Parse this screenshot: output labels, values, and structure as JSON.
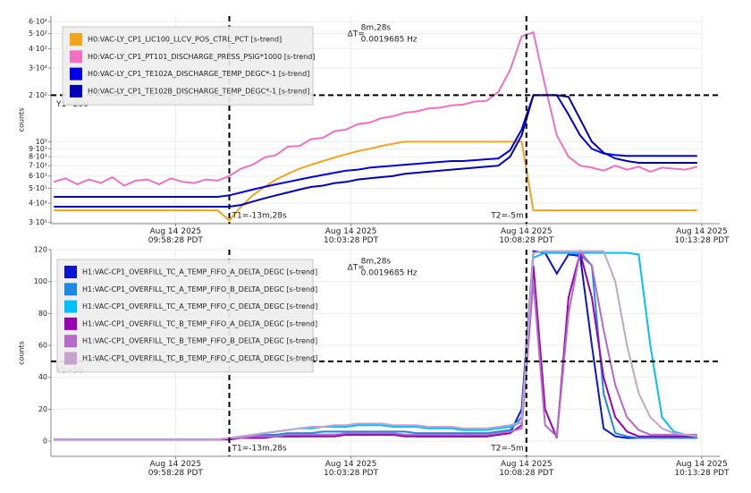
{
  "chart_data": [
    {
      "type": "line",
      "ylabel": "counts",
      "log_y": true,
      "grid": true,
      "legend": "upper left",
      "xlim": [
        "2025-08-14T09:54:55",
        "2025-08-14T10:13:28"
      ],
      "ylim": [
        29.5,
        650
      ],
      "yticks": [
        {
          "value": 30,
          "label": "3·10¹"
        },
        {
          "value": 40,
          "label": "4·10¹"
        },
        {
          "value": 50,
          "label": "5·10¹"
        },
        {
          "value": 60,
          "label": "6·10¹"
        },
        {
          "value": 70,
          "label": "7·10¹"
        },
        {
          "value": 80,
          "label": "8·10¹"
        },
        {
          "value": 90,
          "label": "9·10¹"
        },
        {
          "value": 100,
          "label": "10²"
        },
        {
          "value": 200,
          "label": "2·10²"
        },
        {
          "value": 300,
          "label": "3·10²"
        },
        {
          "value": 400,
          "label": "4·10²"
        },
        {
          "value": 500,
          "label": "5·10²"
        },
        {
          "value": 600,
          "label": "6·10²"
        }
      ],
      "xticks": [
        {
          "value": "2025-08-14T09:58:28",
          "label": "Aug 14 2025\n09:58:28 PDT"
        },
        {
          "value": "2025-08-14T10:03:28",
          "label": "Aug 14 2025\n10:03:28 PDT"
        },
        {
          "value": "2025-08-14T10:08:28",
          "label": "Aug 14 2025\n10:08:28 PDT"
        },
        {
          "value": "2025-08-14T10:13:28",
          "label": "Aug 14 2025\n10:13:28 PDT"
        }
      ],
      "cursors": {
        "t1": {
          "x": "2025-08-14T10:00:00",
          "label": "T1=-13m,28s"
        },
        "t2": {
          "x": "2025-08-14T10:08:28",
          "label": "T2=-5m"
        },
        "y1": {
          "value": 200,
          "label": "Y1=200"
        },
        "delta": "ΔT=",
        "delta_time": "8m,28s",
        "delta_freq": "0.0019685 Hz"
      },
      "x": [
        "2025-08-14T09:55:00",
        "2025-08-14T09:55:20",
        "2025-08-14T09:55:40",
        "2025-08-14T09:56:00",
        "2025-08-14T09:56:20",
        "2025-08-14T09:56:40",
        "2025-08-14T09:57:00",
        "2025-08-14T09:57:20",
        "2025-08-14T09:57:40",
        "2025-08-14T09:58:00",
        "2025-08-14T09:58:20",
        "2025-08-14T09:58:40",
        "2025-08-14T09:59:00",
        "2025-08-14T09:59:20",
        "2025-08-14T09:59:40",
        "2025-08-14T10:00:00",
        "2025-08-14T10:00:20",
        "2025-08-14T10:00:40",
        "2025-08-14T10:01:00",
        "2025-08-14T10:01:20",
        "2025-08-14T10:01:40",
        "2025-08-14T10:02:00",
        "2025-08-14T10:02:20",
        "2025-08-14T10:02:40",
        "2025-08-14T10:03:00",
        "2025-08-14T10:03:20",
        "2025-08-14T10:03:40",
        "2025-08-14T10:04:00",
        "2025-08-14T10:04:20",
        "2025-08-14T10:04:40",
        "2025-08-14T10:05:00",
        "2025-08-14T10:05:20",
        "2025-08-14T10:05:40",
        "2025-08-14T10:06:00",
        "2025-08-14T10:06:20",
        "2025-08-14T10:06:40",
        "2025-08-14T10:07:00",
        "2025-08-14T10:07:20",
        "2025-08-14T10:07:40",
        "2025-08-14T10:08:00",
        "2025-08-14T10:08:20",
        "2025-08-14T10:08:40",
        "2025-08-14T10:09:00",
        "2025-08-14T10:09:20",
        "2025-08-14T10:09:40",
        "2025-08-14T10:10:00",
        "2025-08-14T10:10:20",
        "2025-08-14T10:10:40",
        "2025-08-14T10:11:00",
        "2025-08-14T10:11:20",
        "2025-08-14T10:11:40",
        "2025-08-14T10:12:00",
        "2025-08-14T10:12:20",
        "2025-08-14T10:12:40",
        "2025-08-14T10:13:00",
        "2025-08-14T10:13:20"
      ],
      "series": [
        {
          "name": "H0:VAC-LY_CP1_LIC100_LLCV_POS_CTRL_PCT [s-trend]",
          "color": "#f5a31a",
          "values": [
            36,
            36,
            36,
            36,
            36,
            36,
            36,
            36,
            36,
            36,
            36,
            36,
            36,
            36,
            36,
            31,
            38,
            45,
            51,
            57,
            62,
            67,
            71,
            75,
            79,
            83,
            87,
            90,
            94,
            97,
            100,
            100,
            100,
            100,
            100,
            100,
            100,
            100,
            100,
            100,
            100,
            36,
            36,
            36,
            36,
            36,
            36,
            36,
            36,
            36,
            36,
            36,
            36,
            36,
            36,
            36
          ]
        },
        {
          "name": "H0:VAC-LY_CP1_PT101_DISCHARGE_PRESS_PSIG*1000 [s-trend]",
          "color": "#f46fc0",
          "values": [
            55,
            58,
            53,
            57,
            54,
            59,
            52,
            56,
            57,
            53,
            58,
            55,
            54,
            57,
            56,
            60,
            67,
            71,
            79,
            82,
            93,
            94,
            104,
            106,
            117,
            120,
            130,
            133,
            142,
            146,
            154,
            157,
            164,
            166,
            172,
            174,
            182,
            184,
            210,
            290,
            480,
            510,
            230,
            110,
            80,
            70,
            68,
            65,
            70,
            66,
            69,
            64,
            68,
            67,
            66,
            69
          ]
        },
        {
          "name": "H0:VAC-LY_CP1_TE102A_DISCHARGE_TEMP_DEGC*-1 [s-trend]",
          "color": "#0000e6",
          "values": [
            44,
            44,
            44,
            44,
            44,
            44,
            44,
            44,
            44,
            44,
            44,
            44,
            44,
            44,
            44,
            45,
            47,
            49,
            51,
            53,
            55,
            57,
            59,
            61,
            63,
            65,
            66,
            68,
            69,
            70,
            71,
            72,
            73,
            74,
            75,
            75,
            76,
            77,
            78,
            88,
            120,
            200,
            200,
            200,
            150,
            110,
            90,
            84,
            82,
            81,
            81,
            81,
            81,
            81,
            81,
            81
          ]
        },
        {
          "name": "H0:VAC-LY_CP1_TE102B_DISCHARGE_TEMP_DEGC*-1 [s-trend]",
          "color": "#0000b4",
          "values": [
            38,
            38,
            38,
            38,
            38,
            38,
            38,
            38,
            38,
            38,
            38,
            38,
            38,
            38,
            38,
            38,
            39,
            41,
            43,
            45,
            47,
            49,
            51,
            52,
            54,
            55,
            57,
            58,
            59,
            60,
            62,
            63,
            64,
            65,
            66,
            67,
            68,
            69,
            70,
            80,
            110,
            200,
            200,
            200,
            195,
            140,
            100,
            85,
            78,
            75,
            73,
            73,
            73,
            73,
            73,
            73
          ]
        }
      ]
    },
    {
      "type": "line",
      "ylabel": "counts",
      "log_y": false,
      "grid": true,
      "legend": "upper left",
      "xlim": [
        "2025-08-14T09:54:55",
        "2025-08-14T10:13:28"
      ],
      "ylim": [
        -9.5,
        120
      ],
      "yticks": [
        0,
        20,
        40,
        60,
        80,
        100,
        120
      ],
      "xticks": [
        {
          "value": "2025-08-14T09:58:28",
          "label": "Aug 14 2025\n09:58:28 PDT"
        },
        {
          "value": "2025-08-14T10:03:28",
          "label": "Aug 14 2025\n10:03:28 PDT"
        },
        {
          "value": "2025-08-14T10:08:28",
          "label": "Aug 14 2025\n10:08:28 PDT"
        },
        {
          "value": "2025-08-14T10:13:28",
          "label": "Aug 14 2025\n10:13:28 PDT"
        }
      ],
      "cursors": {
        "t1": {
          "x": "2025-08-14T10:00:00",
          "label": "T1=-13m,28s"
        },
        "t2": {
          "x": "2025-08-14T10:08:28",
          "label": "T2=-5m"
        },
        "y1": {
          "value": 50,
          "label": "Y1=50"
        },
        "delta": "ΔT=",
        "delta_time": "8m,28s",
        "delta_freq": "0.0019685 Hz"
      },
      "x": [
        "2025-08-14T09:55:00",
        "2025-08-14T09:55:20",
        "2025-08-14T09:55:40",
        "2025-08-14T09:56:00",
        "2025-08-14T09:56:20",
        "2025-08-14T09:56:40",
        "2025-08-14T09:57:00",
        "2025-08-14T09:57:20",
        "2025-08-14T09:57:40",
        "2025-08-14T09:58:00",
        "2025-08-14T09:58:20",
        "2025-08-14T09:58:40",
        "2025-08-14T09:59:00",
        "2025-08-14T09:59:20",
        "2025-08-14T09:59:40",
        "2025-08-14T10:00:00",
        "2025-08-14T10:00:20",
        "2025-08-14T10:00:40",
        "2025-08-14T10:01:00",
        "2025-08-14T10:01:20",
        "2025-08-14T10:01:40",
        "2025-08-14T10:02:00",
        "2025-08-14T10:02:20",
        "2025-08-14T10:02:40",
        "2025-08-14T10:03:00",
        "2025-08-14T10:03:20",
        "2025-08-14T10:03:40",
        "2025-08-14T10:04:00",
        "2025-08-14T10:04:20",
        "2025-08-14T10:04:40",
        "2025-08-14T10:05:00",
        "2025-08-14T10:05:20",
        "2025-08-14T10:05:40",
        "2025-08-14T10:06:00",
        "2025-08-14T10:06:20",
        "2025-08-14T10:06:40",
        "2025-08-14T10:07:00",
        "2025-08-14T10:07:20",
        "2025-08-14T10:07:40",
        "2025-08-14T10:08:00",
        "2025-08-14T10:08:20",
        "2025-08-14T10:08:40",
        "2025-08-14T10:09:00",
        "2025-08-14T10:09:20",
        "2025-08-14T10:09:40",
        "2025-08-14T10:10:00",
        "2025-08-14T10:10:20",
        "2025-08-14T10:10:40",
        "2025-08-14T10:11:00",
        "2025-08-14T10:11:20",
        "2025-08-14T10:11:40",
        "2025-08-14T10:12:00",
        "2025-08-14T10:12:20",
        "2025-08-14T10:12:40",
        "2025-08-14T10:13:00",
        "2025-08-14T10:13:20"
      ],
      "series": [
        {
          "name": "H1:VAC-CP1_OVERFILL_TC_A_TEMP_FIFO_A_DELTA_DEGC [s-trend]",
          "color": "#0a14d2",
          "values": [
            1,
            1,
            1,
            1,
            1,
            1,
            1,
            1,
            1,
            1,
            1,
            1,
            1,
            1,
            1,
            2,
            2,
            3,
            3,
            3,
            3,
            3,
            4,
            4,
            4,
            4,
            4,
            4,
            4,
            4,
            4,
            3,
            3,
            3,
            3,
            3,
            3,
            3,
            4,
            5,
            20,
            119,
            118,
            105,
            117,
            116,
            60,
            8,
            3,
            2,
            2,
            2,
            2,
            2,
            2,
            2
          ]
        },
        {
          "name": "H1:VAC-CP1_OVERFILL_TC_A_TEMP_FIFO_B_DELTA_DEGC [s-trend]",
          "color": "#1e88e5",
          "values": [
            1,
            1,
            1,
            1,
            1,
            1,
            1,
            1,
            1,
            1,
            1,
            1,
            1,
            1,
            1,
            2,
            3,
            3,
            4,
            4,
            5,
            5,
            5,
            6,
            6,
            6,
            6,
            6,
            6,
            6,
            6,
            5,
            5,
            5,
            5,
            5,
            5,
            5,
            6,
            7,
            15,
            118,
            119,
            118,
            118,
            117,
            110,
            30,
            5,
            3,
            2,
            2,
            2,
            2,
            2,
            2
          ]
        },
        {
          "name": "H1:VAC-CP1_OVERFILL_TC_A_TEMP_FIFO_C_DELTA_DEGC [s-trend]",
          "color": "#00bfff",
          "values": [
            1,
            1,
            1,
            1,
            1,
            1,
            1,
            1,
            1,
            1,
            1,
            1,
            1,
            1,
            1,
            2,
            3,
            4,
            5,
            6,
            7,
            8,
            8,
            9,
            9,
            9,
            10,
            10,
            10,
            9,
            9,
            9,
            8,
            8,
            8,
            7,
            7,
            7,
            8,
            9,
            12,
            115,
            118,
            118,
            118,
            118,
            118,
            118,
            118,
            118,
            117,
            60,
            15,
            6,
            4,
            3
          ]
        },
        {
          "name": "H1:VAC-CP1_OVERFILL_TC_B_TEMP_FIFO_A_DELTA_DEGC [s-trend]",
          "color": "#9c00b4",
          "values": [
            1,
            1,
            1,
            1,
            1,
            1,
            1,
            1,
            1,
            1,
            1,
            1,
            1,
            1,
            1,
            1,
            2,
            2,
            2,
            3,
            3,
            3,
            3,
            3,
            3,
            4,
            4,
            4,
            4,
            4,
            3,
            3,
            3,
            3,
            3,
            3,
            3,
            3,
            4,
            5,
            10,
            110,
            20,
            2,
            90,
            118,
            90,
            40,
            15,
            6,
            3,
            3,
            3,
            3,
            3,
            3
          ]
        },
        {
          "name": "H1:VAC-CP1_OVERFILL_TC_B_TEMP_FIFO_B_DELTA_DEGC [s-trend]",
          "color": "#b46ac8",
          "values": [
            1,
            1,
            1,
            1,
            1,
            1,
            1,
            1,
            1,
            1,
            1,
            1,
            1,
            1,
            1,
            2,
            2,
            3,
            3,
            3,
            4,
            4,
            4,
            4,
            4,
            5,
            5,
            5,
            5,
            5,
            4,
            4,
            4,
            4,
            4,
            4,
            4,
            4,
            5,
            6,
            8,
            100,
            10,
            3,
            80,
            119,
            110,
            70,
            35,
            15,
            7,
            4,
            4,
            4,
            4,
            4
          ]
        },
        {
          "name": "H1:VAC-CP1_OVERFILL_TC_B_TEMP_FIFO_C_DELTA_DEGC [s-trend]",
          "color": "#c4a4cc",
          "values": [
            1,
            1,
            1,
            1,
            1,
            1,
            1,
            1,
            1,
            1,
            1,
            1,
            1,
            1,
            1,
            2,
            3,
            4,
            5,
            6,
            7,
            8,
            9,
            9,
            10,
            10,
            11,
            11,
            11,
            10,
            10,
            10,
            9,
            9,
            9,
            8,
            8,
            8,
            9,
            10,
            12,
            118,
            119,
            119,
            119,
            119,
            119,
            119,
            100,
            60,
            30,
            15,
            8,
            5,
            4,
            3
          ]
        }
      ]
    }
  ]
}
